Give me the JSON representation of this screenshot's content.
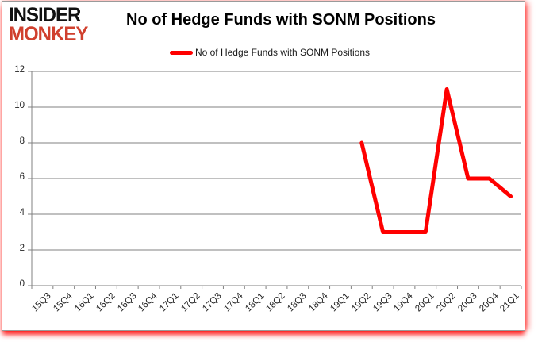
{
  "logo": {
    "line1": "INSIDER",
    "line2": "MONKEY"
  },
  "header": {
    "title": "No of Hedge Funds with SONM Positions"
  },
  "legend": {
    "label": "No of Hedge Funds with SONM Positions"
  },
  "colors": {
    "line": "#ff0000",
    "grid": "#808080",
    "axis": "#808080",
    "tick_text": "#1f1f1f",
    "title_text": "#000000",
    "logo_black": "#111111",
    "logo_red": "#d0402e",
    "frame_border": "#9a9a9a",
    "background": "#ffffff"
  },
  "chart_data": {
    "type": "line",
    "title": "No of Hedge Funds with SONM Positions",
    "categories": [
      "15Q3",
      "15Q4",
      "16Q1",
      "16Q2",
      "16Q3",
      "16Q4",
      "17Q1",
      "17Q2",
      "17Q3",
      "17Q4",
      "18Q1",
      "18Q2",
      "18Q3",
      "18Q4",
      "19Q1",
      "19Q2",
      "19Q3",
      "19Q4",
      "20Q1",
      "20Q2",
      "20Q3",
      "20Q4",
      "21Q1"
    ],
    "series": [
      {
        "name": "No of Hedge Funds with SONM Positions",
        "color": "#ff0000",
        "values": [
          null,
          null,
          null,
          null,
          null,
          null,
          null,
          null,
          null,
          null,
          null,
          null,
          null,
          null,
          null,
          8,
          3,
          3,
          3,
          11,
          6,
          6,
          5
        ]
      }
    ],
    "xlabel": "",
    "ylabel": "",
    "ylim": [
      0,
      12
    ],
    "yticks": [
      0,
      2,
      4,
      6,
      8,
      10,
      12
    ],
    "grid": true,
    "legend_position": "top"
  }
}
